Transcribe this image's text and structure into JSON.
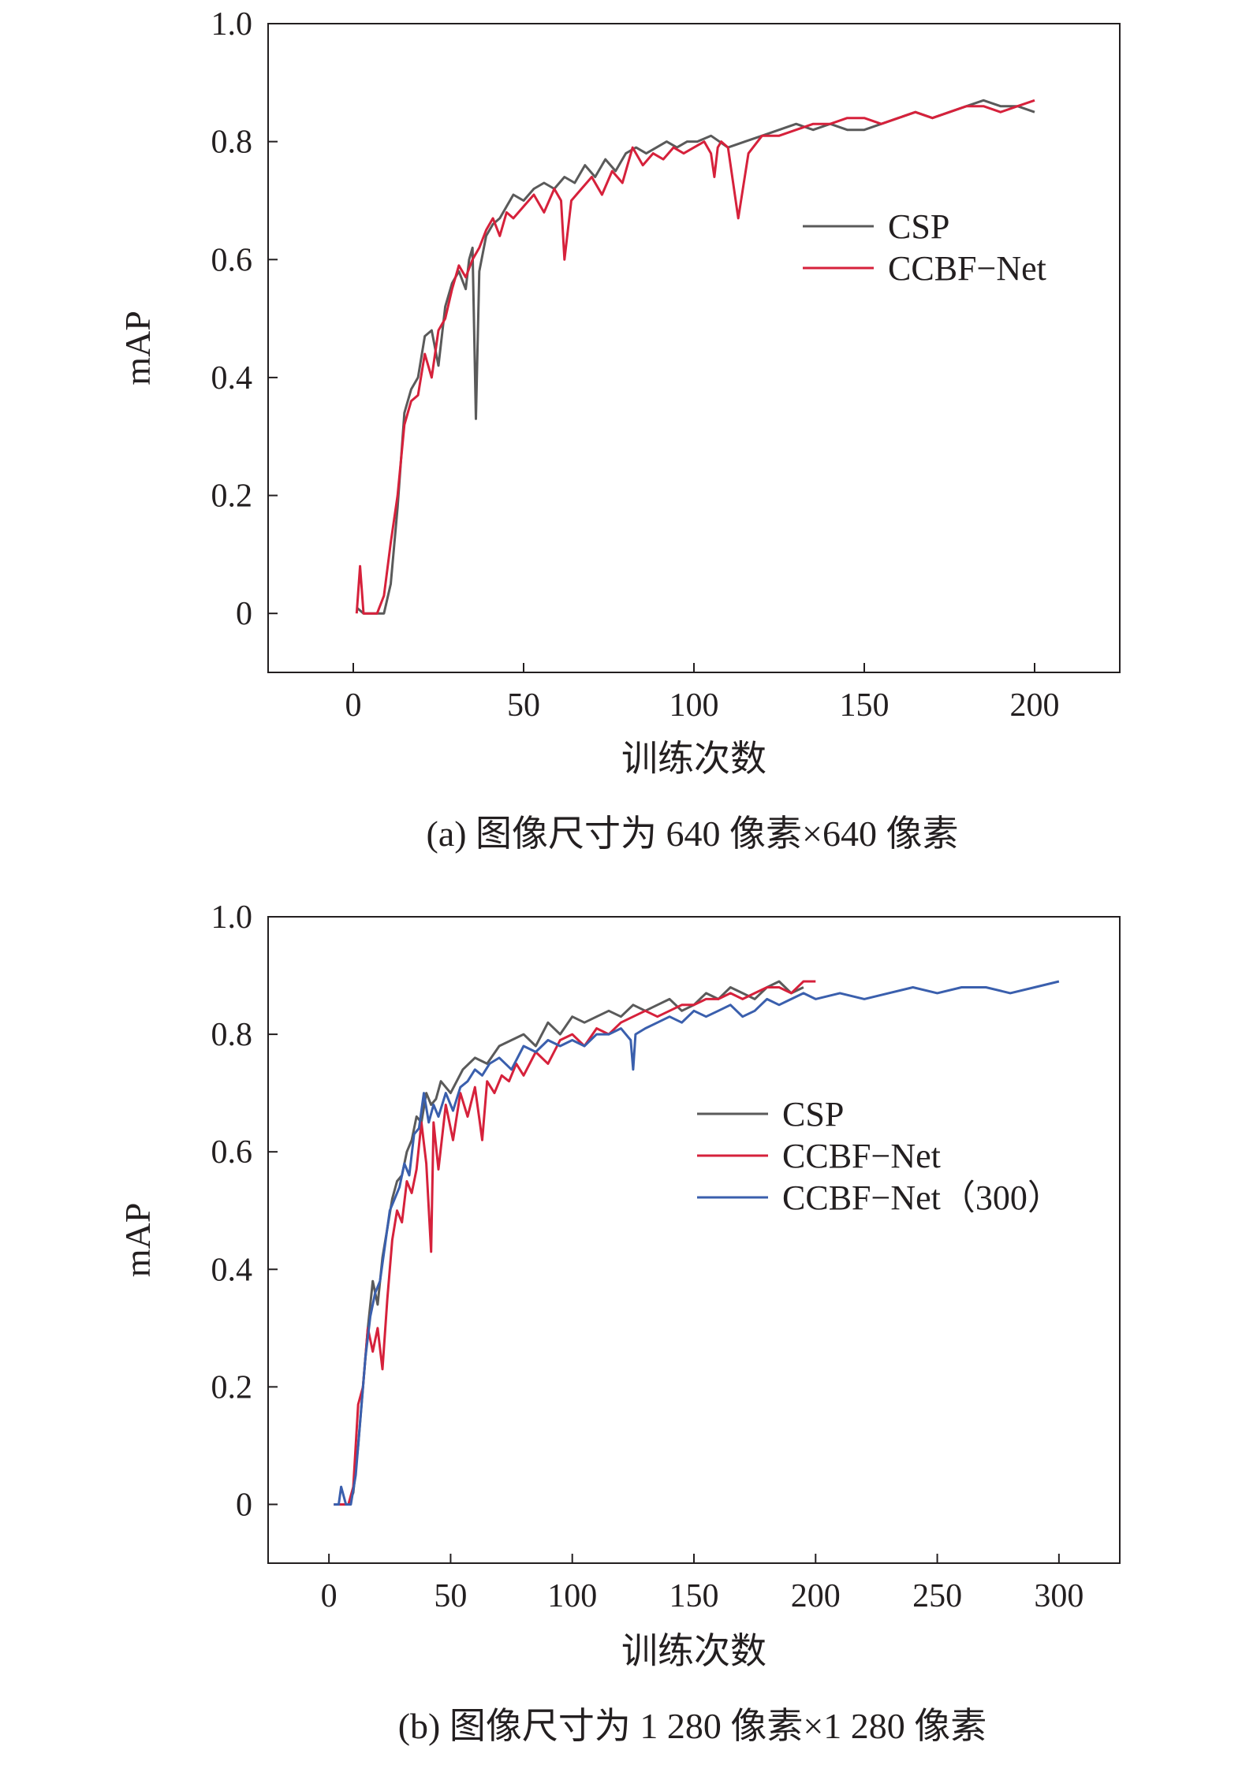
{
  "chart_data": [
    {
      "type": "line",
      "caption": "(a) 图像尺寸为 640 像素×640 像素",
      "xlabel": "训练次数",
      "ylabel": "mAP",
      "xlim": [
        -25,
        225
      ],
      "ylim": [
        -0.1,
        1.0
      ],
      "xticks": [
        0,
        50,
        100,
        150,
        200
      ],
      "xtick_labels": [
        "0",
        "50",
        "100",
        "150",
        "200"
      ],
      "yticks": [
        0,
        0.2,
        0.4,
        0.6,
        0.8,
        1.0
      ],
      "ytick_labels": [
        "0",
        "0.2",
        "0.4",
        "0.6",
        "0.8",
        "1.0"
      ],
      "grid": false,
      "legend_position": "upper-right",
      "series": [
        {
          "name": "CSP",
          "color": "#5a5a5a",
          "x": [
            1,
            3,
            5,
            7,
            9,
            11,
            13,
            15,
            17,
            19,
            21,
            23,
            25,
            27,
            29,
            31,
            33,
            34,
            35,
            36,
            37,
            39,
            41,
            43,
            45,
            47,
            50,
            53,
            56,
            59,
            62,
            65,
            68,
            71,
            74,
            77,
            80,
            83,
            86,
            89,
            92,
            95,
            98,
            101,
            105,
            110,
            115,
            120,
            125,
            130,
            135,
            140,
            145,
            150,
            155,
            160,
            165,
            170,
            175,
            180,
            185,
            190,
            195,
            200
          ],
          "y": [
            0.01,
            0.0,
            0.0,
            0.0,
            0.0,
            0.05,
            0.18,
            0.34,
            0.38,
            0.4,
            0.47,
            0.48,
            0.42,
            0.52,
            0.56,
            0.58,
            0.55,
            0.6,
            0.62,
            0.33,
            0.58,
            0.64,
            0.66,
            0.67,
            0.69,
            0.71,
            0.7,
            0.72,
            0.73,
            0.72,
            0.74,
            0.73,
            0.76,
            0.74,
            0.77,
            0.75,
            0.78,
            0.79,
            0.78,
            0.79,
            0.8,
            0.79,
            0.8,
            0.8,
            0.81,
            0.79,
            0.8,
            0.81,
            0.82,
            0.83,
            0.82,
            0.83,
            0.82,
            0.82,
            0.83,
            0.84,
            0.85,
            0.84,
            0.85,
            0.86,
            0.87,
            0.86,
            0.86,
            0.85
          ]
        },
        {
          "name": "CCBF−Net",
          "color": "#d6213b",
          "x": [
            1,
            2,
            3,
            5,
            7,
            9,
            11,
            13,
            15,
            17,
            19,
            21,
            23,
            25,
            27,
            29,
            31,
            33,
            35,
            37,
            39,
            41,
            43,
            45,
            47,
            50,
            53,
            56,
            59,
            61,
            62,
            64,
            67,
            70,
            73,
            76,
            79,
            82,
            85,
            88,
            91,
            94,
            97,
            100,
            103,
            105,
            106,
            107,
            108,
            110,
            113,
            116,
            120,
            125,
            130,
            135,
            140,
            145,
            150,
            155,
            160,
            165,
            170,
            175,
            180,
            185,
            190,
            195,
            200
          ],
          "y": [
            0.0,
            0.08,
            0.0,
            0.0,
            0.0,
            0.03,
            0.12,
            0.2,
            0.32,
            0.36,
            0.37,
            0.44,
            0.4,
            0.48,
            0.5,
            0.55,
            0.59,
            0.57,
            0.6,
            0.62,
            0.65,
            0.67,
            0.64,
            0.68,
            0.67,
            0.69,
            0.71,
            0.68,
            0.72,
            0.7,
            0.6,
            0.7,
            0.72,
            0.74,
            0.71,
            0.75,
            0.73,
            0.79,
            0.76,
            0.78,
            0.77,
            0.79,
            0.78,
            0.79,
            0.8,
            0.78,
            0.74,
            0.79,
            0.8,
            0.79,
            0.67,
            0.78,
            0.81,
            0.81,
            0.82,
            0.83,
            0.83,
            0.84,
            0.84,
            0.83,
            0.84,
            0.85,
            0.84,
            0.85,
            0.86,
            0.86,
            0.85,
            0.86,
            0.87
          ]
        }
      ]
    },
    {
      "type": "line",
      "caption": "(b) 图像尺寸为 1 280 像素×1 280 像素",
      "xlabel": "训练次数",
      "ylabel": "mAP",
      "xlim": [
        -25,
        325
      ],
      "ylim": [
        -0.1,
        1.0
      ],
      "xticks": [
        0,
        50,
        100,
        150,
        200,
        250,
        300
      ],
      "xtick_labels": [
        "0",
        "50",
        "100",
        "150",
        "200",
        "250",
        "300"
      ],
      "yticks": [
        0,
        0.2,
        0.4,
        0.6,
        0.8,
        1.0
      ],
      "ytick_labels": [
        "0",
        "0.2",
        "0.4",
        "0.6",
        "0.8",
        "1.0"
      ],
      "grid": false,
      "legend_position": "middle-right",
      "series": [
        {
          "name": "CSP",
          "color": "#5a5a5a",
          "x": [
            2,
            5,
            8,
            10,
            12,
            14,
            16,
            18,
            20,
            22,
            24,
            26,
            28,
            30,
            32,
            34,
            36,
            38,
            40,
            42,
            44,
            46,
            50,
            55,
            60,
            65,
            70,
            75,
            80,
            85,
            90,
            95,
            100,
            105,
            110,
            115,
            120,
            125,
            130,
            135,
            140,
            145,
            150,
            155,
            160,
            165,
            170,
            175,
            180,
            185,
            190,
            195
          ],
          "y": [
            0.0,
            0.0,
            0.0,
            0.02,
            0.1,
            0.2,
            0.3,
            0.38,
            0.34,
            0.42,
            0.47,
            0.52,
            0.55,
            0.56,
            0.6,
            0.62,
            0.66,
            0.65,
            0.7,
            0.68,
            0.69,
            0.72,
            0.7,
            0.74,
            0.76,
            0.75,
            0.78,
            0.79,
            0.8,
            0.78,
            0.82,
            0.8,
            0.83,
            0.82,
            0.83,
            0.84,
            0.83,
            0.85,
            0.84,
            0.85,
            0.86,
            0.84,
            0.85,
            0.87,
            0.86,
            0.88,
            0.87,
            0.86,
            0.88,
            0.89,
            0.87,
            0.88
          ]
        },
        {
          "name": "CCBF−Net",
          "color": "#d6213b",
          "x": [
            2,
            5,
            8,
            10,
            12,
            14,
            16,
            18,
            20,
            22,
            24,
            26,
            28,
            30,
            32,
            34,
            36,
            38,
            40,
            42,
            43,
            45,
            48,
            51,
            54,
            57,
            60,
            62,
            63,
            65,
            68,
            71,
            74,
            77,
            80,
            85,
            90,
            95,
            100,
            105,
            110,
            115,
            120,
            125,
            130,
            135,
            140,
            145,
            150,
            155,
            160,
            165,
            170,
            175,
            180,
            185,
            190,
            195,
            200
          ],
          "y": [
            0.0,
            0.0,
            0.0,
            0.03,
            0.17,
            0.2,
            0.3,
            0.26,
            0.3,
            0.23,
            0.35,
            0.45,
            0.5,
            0.48,
            0.55,
            0.53,
            0.57,
            0.65,
            0.58,
            0.43,
            0.65,
            0.57,
            0.68,
            0.62,
            0.7,
            0.66,
            0.71,
            0.65,
            0.62,
            0.72,
            0.7,
            0.73,
            0.72,
            0.75,
            0.73,
            0.77,
            0.75,
            0.79,
            0.8,
            0.78,
            0.81,
            0.8,
            0.82,
            0.83,
            0.84,
            0.83,
            0.84,
            0.85,
            0.85,
            0.86,
            0.86,
            0.87,
            0.86,
            0.87,
            0.88,
            0.88,
            0.87,
            0.89,
            0.89
          ]
        },
        {
          "name": "CCBF−Net（300）",
          "color": "#3a5fad",
          "x": [
            2,
            4,
            5,
            7,
            9,
            11,
            13,
            15,
            17,
            19,
            21,
            23,
            25,
            27,
            29,
            31,
            33,
            35,
            37,
            39,
            41,
            43,
            45,
            48,
            51,
            54,
            57,
            60,
            63,
            66,
            70,
            75,
            80,
            85,
            90,
            95,
            100,
            105,
            110,
            115,
            120,
            124,
            125,
            126,
            130,
            135,
            140,
            145,
            150,
            155,
            160,
            165,
            170,
            175,
            180,
            185,
            190,
            195,
            200,
            210,
            220,
            230,
            240,
            250,
            260,
            270,
            280,
            290,
            300
          ],
          "y": [
            0.0,
            0.0,
            0.03,
            0.0,
            0.0,
            0.05,
            0.15,
            0.25,
            0.32,
            0.36,
            0.38,
            0.44,
            0.5,
            0.52,
            0.54,
            0.58,
            0.56,
            0.63,
            0.64,
            0.7,
            0.65,
            0.68,
            0.66,
            0.7,
            0.67,
            0.71,
            0.72,
            0.74,
            0.73,
            0.75,
            0.76,
            0.74,
            0.78,
            0.77,
            0.79,
            0.78,
            0.79,
            0.78,
            0.8,
            0.8,
            0.81,
            0.79,
            0.74,
            0.8,
            0.81,
            0.82,
            0.83,
            0.82,
            0.84,
            0.83,
            0.84,
            0.85,
            0.83,
            0.84,
            0.86,
            0.85,
            0.86,
            0.87,
            0.86,
            0.87,
            0.86,
            0.87,
            0.88,
            0.87,
            0.88,
            0.88,
            0.87,
            0.88,
            0.89
          ]
        }
      ]
    }
  ]
}
